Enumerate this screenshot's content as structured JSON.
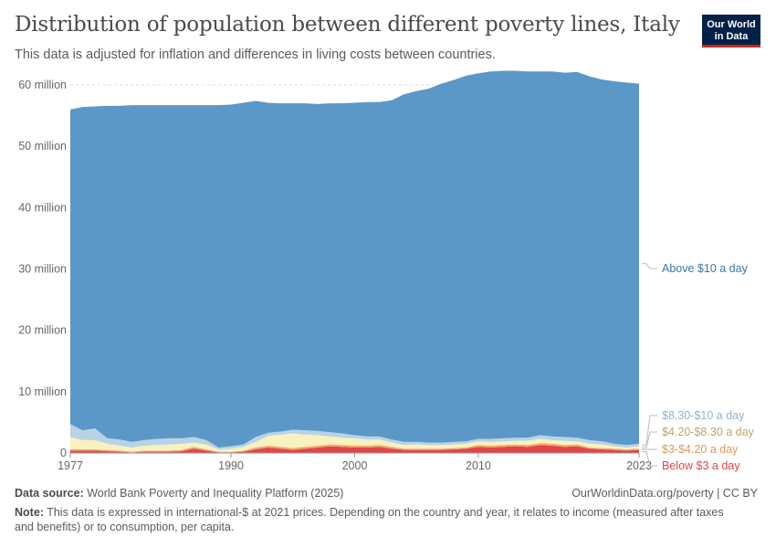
{
  "header": {
    "title": "Distribution of population between different poverty lines, Italy",
    "subtitle": "This data is adjusted for inflation and differences in living costs between countries.",
    "logo_line1": "Our World",
    "logo_line2": "in Data"
  },
  "footer": {
    "source_label": "Data source:",
    "source_text": "World Bank Poverty and Inequality Platform (2025)",
    "credit": "OurWorldinData.org/poverty | CC BY",
    "note_label": "Note:",
    "note_text": "This data is expressed in international-$ at 2021 prices. Depending on the country and year, it relates to income (measured after taxes and benefits) or to consumption, per capita."
  },
  "chart_data": {
    "type": "area",
    "stacked": true,
    "x": [
      1977,
      1978,
      1979,
      1980,
      1981,
      1982,
      1983,
      1984,
      1985,
      1986,
      1987,
      1988,
      1989,
      1990,
      1991,
      1992,
      1993,
      1994,
      1995,
      1996,
      1997,
      1998,
      1999,
      2000,
      2001,
      2002,
      2003,
      2004,
      2005,
      2006,
      2007,
      2008,
      2009,
      2010,
      2011,
      2012,
      2013,
      2014,
      2015,
      2016,
      2017,
      2018,
      2019,
      2020,
      2021,
      2022,
      2023
    ],
    "ylim": [
      0,
      60000000
    ],
    "yticks": [
      0,
      10000000,
      20000000,
      30000000,
      40000000,
      50000000,
      60000000
    ],
    "ytick_labels": [
      "0",
      "10 million",
      "20 million",
      "30 million",
      "40 million",
      "50 million",
      "60 million"
    ],
    "xticks": [
      1977,
      1990,
      2000,
      2010,
      2023
    ],
    "xtick_labels": [
      "1977",
      "1990",
      "2000",
      "2010",
      "2023"
    ],
    "grid": true,
    "legend_position": "right",
    "series": [
      {
        "name": "Below $3 a day",
        "color": "#e0464b",
        "values": [
          400000,
          400000,
          400000,
          300000,
          200000,
          100000,
          200000,
          200000,
          200000,
          300000,
          700000,
          400000,
          100000,
          100000,
          200000,
          600000,
          900000,
          700000,
          500000,
          700000,
          900000,
          1100000,
          1000000,
          900000,
          900000,
          1000000,
          700000,
          500000,
          500000,
          500000,
          500000,
          600000,
          700000,
          1000000,
          900000,
          1000000,
          1100000,
          1000000,
          1300000,
          1200000,
          1000000,
          1100000,
          700000,
          600000,
          500000,
          400000,
          500000
        ]
      },
      {
        "name": "$3-$4.20 a day",
        "color": "#f2a56a",
        "values": [
          200000,
          200000,
          200000,
          200000,
          200000,
          100000,
          200000,
          200000,
          200000,
          200000,
          300000,
          200000,
          100000,
          100000,
          200000,
          300000,
          300000,
          300000,
          300000,
          300000,
          300000,
          300000,
          300000,
          300000,
          300000,
          300000,
          300000,
          200000,
          200000,
          200000,
          200000,
          200000,
          200000,
          300000,
          300000,
          300000,
          300000,
          300000,
          300000,
          300000,
          300000,
          300000,
          200000,
          200000,
          200000,
          200000,
          200000
        ]
      },
      {
        "name": "$4.20-$8.30 a day",
        "color": "#f9f1bf",
        "values": [
          2000000,
          1500000,
          1500000,
          1000000,
          800000,
          700000,
          800000,
          900000,
          1000000,
          1000000,
          700000,
          800000,
          400000,
          500000,
          600000,
          900000,
          1600000,
          2000000,
          2400000,
          2000000,
          1700000,
          1300000,
          1200000,
          1200000,
          1000000,
          900000,
          700000,
          600000,
          700000,
          600000,
          600000,
          600000,
          600000,
          600000,
          600000,
          600000,
          600000,
          700000,
          700000,
          600000,
          700000,
          500000,
          600000,
          600000,
          400000,
          300000,
          400000
        ]
      },
      {
        "name": "$8.30-$10 a day",
        "color": "#b8d3e6",
        "values": [
          2100000,
          1600000,
          1900000,
          900000,
          1000000,
          900000,
          900000,
          1000000,
          1000000,
          900000,
          900000,
          700000,
          300000,
          400000,
          400000,
          800000,
          500000,
          500000,
          600000,
          700000,
          700000,
          700000,
          700000,
          500000,
          500000,
          500000,
          500000,
          500000,
          400000,
          400000,
          400000,
          400000,
          400000,
          400000,
          500000,
          500000,
          500000,
          500000,
          600000,
          600000,
          600000,
          600000,
          600000,
          500000,
          400000,
          400000,
          400000
        ]
      },
      {
        "name": "Above $10 a day",
        "color": "#5b98c7",
        "values": [
          51300000,
          52700000,
          52500000,
          54200000,
          54400000,
          54900000,
          54600000,
          54400000,
          54300000,
          54300000,
          54100000,
          54600000,
          55800000,
          55700000,
          55700000,
          54800000,
          53800000,
          53500000,
          53200000,
          53300000,
          53300000,
          53600000,
          53800000,
          54200000,
          54500000,
          54500000,
          55300000,
          56700000,
          57200000,
          57700000,
          58500000,
          59000000,
          59600000,
          59600000,
          59900000,
          59900000,
          59800000,
          59700000,
          59300000,
          59500000,
          59400000,
          59600000,
          59300000,
          59000000,
          59100000,
          59100000,
          58700000
        ]
      }
    ]
  }
}
